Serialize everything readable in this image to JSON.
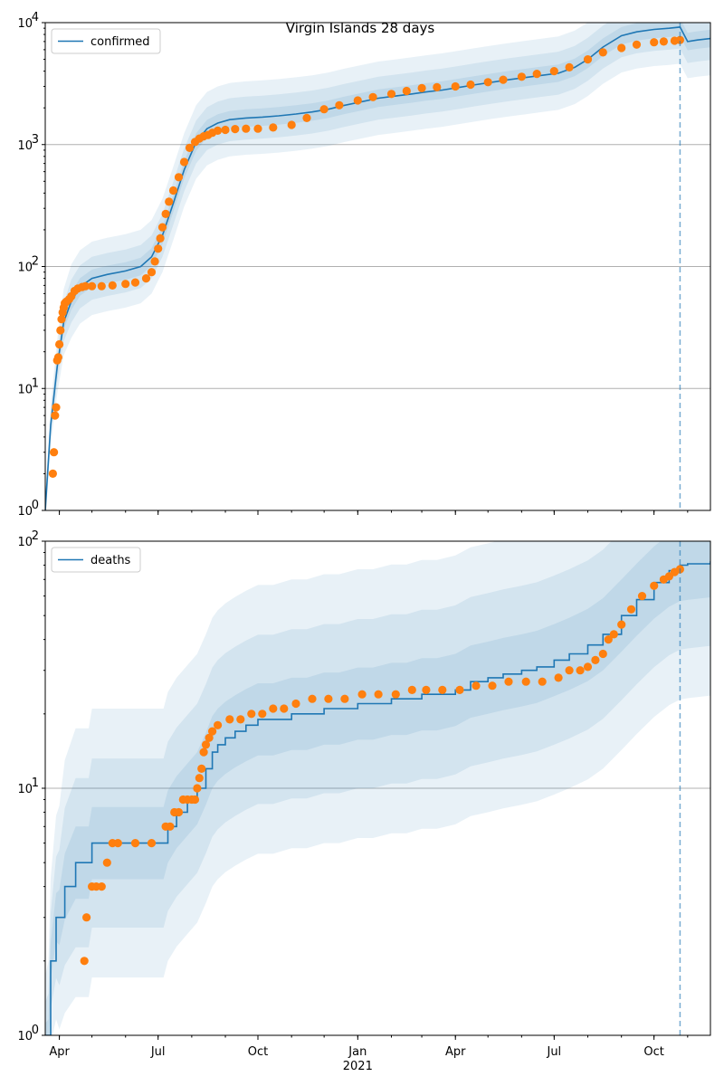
{
  "title": "Virgin Islands 28 days",
  "colors": {
    "model": "#1f77b4",
    "observed": "#ff7f0e",
    "band": "#1f77b4",
    "grid": "#b0b0b0"
  },
  "x_ticks": [
    {
      "label": "Apr",
      "date": "2020-04-01"
    },
    {
      "label": "Jul",
      "date": "2020-07-01"
    },
    {
      "label": "Oct",
      "date": "2020-10-01"
    },
    {
      "label": "Jan",
      "date": "2021-01-01"
    },
    {
      "label": "Apr",
      "date": "2021-04-01"
    },
    {
      "label": "Jul",
      "date": "2021-07-01"
    },
    {
      "label": "Oct",
      "date": "2021-10-01"
    }
  ],
  "x_year_label": "2021",
  "chart_data": [
    {
      "type": "line",
      "scale": "log",
      "legend": "confirmed",
      "legend_position": "top-left",
      "grid": "horizontal",
      "xlim": [
        "2020-03-19",
        "2021-11-22"
      ],
      "ylim": [
        1,
        10000
      ],
      "y_ticks": [
        {
          "value": 1,
          "base": "10",
          "exp": "0"
        },
        {
          "value": 10,
          "base": "10",
          "exp": "1"
        },
        {
          "value": 100,
          "base": "10",
          "exp": "2"
        },
        {
          "value": 1000,
          "base": "10",
          "exp": "3"
        },
        {
          "value": 10000,
          "base": "10",
          "exp": "4"
        }
      ],
      "forecast_start": "2021-10-25",
      "model": {
        "x": [
          "2020-03-19",
          "2020-03-24",
          "2020-03-30",
          "2020-04-05",
          "2020-04-12",
          "2020-04-20",
          "2020-05-01",
          "2020-05-15",
          "2020-06-01",
          "2020-06-15",
          "2020-06-25",
          "2020-07-05",
          "2020-07-15",
          "2020-07-25",
          "2020-08-05",
          "2020-08-15",
          "2020-08-25",
          "2020-09-05",
          "2020-09-20",
          "2020-10-05",
          "2020-10-20",
          "2020-11-05",
          "2020-11-20",
          "2020-12-05",
          "2020-12-20",
          "2021-01-05",
          "2021-01-20",
          "2021-02-05",
          "2021-02-20",
          "2021-03-05",
          "2021-03-20",
          "2021-04-05",
          "2021-04-20",
          "2021-05-05",
          "2021-05-20",
          "2021-06-05",
          "2021-06-20",
          "2021-07-05",
          "2021-07-20",
          "2021-08-01",
          "2021-08-15",
          "2021-09-01",
          "2021-09-15",
          "2021-10-01",
          "2021-10-15",
          "2021-10-25",
          "2021-11-01",
          "2021-11-10",
          "2021-11-22"
        ],
        "y": [
          1,
          5,
          15,
          35,
          52,
          68,
          80,
          86,
          92,
          100,
          120,
          180,
          330,
          620,
          1050,
          1350,
          1500,
          1600,
          1650,
          1680,
          1720,
          1780,
          1850,
          1950,
          2100,
          2250,
          2400,
          2500,
          2600,
          2700,
          2800,
          2950,
          3100,
          3250,
          3400,
          3550,
          3700,
          3850,
          4300,
          5000,
          6300,
          7800,
          8400,
          8800,
          9000,
          9200,
          7000,
          7200,
          7400
        ]
      },
      "band_spread": [
        2.0,
        1.5,
        1.18
      ],
      "observed": {
        "x": [
          "2020-03-26",
          "2020-03-27",
          "2020-03-28",
          "2020-03-29",
          "2020-03-30",
          "2020-03-31",
          "2020-04-01",
          "2020-04-02",
          "2020-04-03",
          "2020-04-04",
          "2020-04-05",
          "2020-04-06",
          "2020-04-07",
          "2020-04-08",
          "2020-04-10",
          "2020-04-12",
          "2020-04-15",
          "2020-04-18",
          "2020-04-22",
          "2020-04-25",
          "2020-05-01",
          "2020-05-10",
          "2020-05-20",
          "2020-06-01",
          "2020-06-10",
          "2020-06-20",
          "2020-06-25",
          "2020-06-28",
          "2020-07-01",
          "2020-07-03",
          "2020-07-05",
          "2020-07-08",
          "2020-07-11",
          "2020-07-15",
          "2020-07-20",
          "2020-07-25",
          "2020-07-30",
          "2020-08-04",
          "2020-08-08",
          "2020-08-12",
          "2020-08-16",
          "2020-08-20",
          "2020-08-25",
          "2020-09-01",
          "2020-09-10",
          "2020-09-20",
          "2020-10-01",
          "2020-10-15",
          "2020-11-01",
          "2020-11-15",
          "2020-12-01",
          "2020-12-15",
          "2021-01-01",
          "2021-01-15",
          "2021-02-01",
          "2021-02-15",
          "2021-03-01",
          "2021-03-15",
          "2021-04-01",
          "2021-04-15",
          "2021-05-01",
          "2021-05-15",
          "2021-06-01",
          "2021-06-15",
          "2021-07-01",
          "2021-07-15",
          "2021-08-01",
          "2021-08-15",
          "2021-09-01",
          "2021-09-15",
          "2021-10-01",
          "2021-10-10",
          "2021-10-20",
          "2021-10-25"
        ],
        "y": [
          2,
          3,
          6,
          7,
          17,
          18,
          23,
          30,
          37,
          42,
          46,
          50,
          51,
          52,
          54,
          57,
          63,
          66,
          68,
          69,
          69,
          69,
          70,
          72,
          74,
          80,
          90,
          110,
          140,
          170,
          210,
          270,
          340,
          420,
          540,
          720,
          940,
          1050,
          1120,
          1170,
          1200,
          1250,
          1300,
          1320,
          1340,
          1350,
          1350,
          1380,
          1450,
          1650,
          1950,
          2100,
          2300,
          2450,
          2600,
          2750,
          2900,
          2950,
          3000,
          3100,
          3250,
          3400,
          3600,
          3800,
          4000,
          4300,
          5000,
          5700,
          6200,
          6600,
          6900,
          7000,
          7100,
          7200
        ]
      }
    },
    {
      "type": "line",
      "scale": "log",
      "legend": "deaths",
      "legend_position": "top-left",
      "grid": "horizontal",
      "xlim": [
        "2020-03-19",
        "2021-11-22"
      ],
      "ylim": [
        1,
        100
      ],
      "y_ticks": [
        {
          "value": 1,
          "base": "10",
          "exp": "0"
        },
        {
          "value": 10,
          "base": "10",
          "exp": "1"
        },
        {
          "value": 100,
          "base": "10",
          "exp": "2"
        }
      ],
      "forecast_start": "2021-10-25",
      "model": {
        "x": [
          "2020-03-19",
          "2020-03-22",
          "2020-03-24",
          "2020-03-29",
          "2020-04-01",
          "2020-04-06",
          "2020-04-16",
          "2020-04-28",
          "2020-05-01",
          "2020-07-06",
          "2020-07-10",
          "2020-07-18",
          "2020-07-28",
          "2020-08-06",
          "2020-08-14",
          "2020-08-20",
          "2020-08-25",
          "2020-09-01",
          "2020-09-10",
          "2020-09-20",
          "2020-10-01",
          "2020-10-15",
          "2020-11-01",
          "2020-11-15",
          "2020-12-01",
          "2020-12-15",
          "2021-01-01",
          "2021-01-15",
          "2021-02-01",
          "2021-02-15",
          "2021-03-01",
          "2021-03-15",
          "2021-04-01",
          "2021-04-15",
          "2021-05-01",
          "2021-05-15",
          "2021-06-01",
          "2021-06-15",
          "2021-07-01",
          "2021-07-15",
          "2021-08-01",
          "2021-08-15",
          "2021-09-01",
          "2021-09-15",
          "2021-10-01",
          "2021-10-15",
          "2021-10-25",
          "2021-11-01",
          "2021-11-22"
        ],
        "y": [
          1,
          1,
          2,
          3,
          3,
          4,
          5,
          5,
          6,
          6,
          7,
          8,
          9,
          10,
          12,
          14,
          15,
          16,
          17,
          18,
          19,
          19,
          20,
          20,
          21,
          21,
          22,
          22,
          23,
          23,
          24,
          24,
          25,
          27,
          28,
          29,
          30,
          31,
          33,
          35,
          38,
          42,
          50,
          58,
          68,
          76,
          80,
          81,
          83
        ]
      },
      "band_spread": [
        3.5,
        2.2,
        1.4
      ],
      "observed": {
        "x": [
          "2020-04-24",
          "2020-04-26",
          "2020-05-01",
          "2020-05-05",
          "2020-05-10",
          "2020-05-15",
          "2020-05-20",
          "2020-05-25",
          "2020-06-10",
          "2020-06-25",
          "2020-07-08",
          "2020-07-12",
          "2020-07-16",
          "2020-07-20",
          "2020-07-24",
          "2020-07-28",
          "2020-08-01",
          "2020-08-04",
          "2020-08-06",
          "2020-08-08",
          "2020-08-10",
          "2020-08-12",
          "2020-08-14",
          "2020-08-17",
          "2020-08-20",
          "2020-08-25",
          "2020-09-05",
          "2020-09-15",
          "2020-09-25",
          "2020-10-05",
          "2020-10-15",
          "2020-10-25",
          "2020-11-05",
          "2020-11-20",
          "2020-12-05",
          "2020-12-20",
          "2021-01-05",
          "2021-01-20",
          "2021-02-05",
          "2021-02-20",
          "2021-03-05",
          "2021-03-20",
          "2021-04-05",
          "2021-04-20",
          "2021-05-05",
          "2021-05-20",
          "2021-06-05",
          "2021-06-20",
          "2021-07-05",
          "2021-07-15",
          "2021-07-25",
          "2021-08-01",
          "2021-08-08",
          "2021-08-15",
          "2021-08-20",
          "2021-08-25",
          "2021-09-01",
          "2021-09-10",
          "2021-09-20",
          "2021-10-01",
          "2021-10-10",
          "2021-10-15",
          "2021-10-20",
          "2021-10-25"
        ],
        "y": [
          2,
          3,
          4,
          4,
          4,
          5,
          6,
          6,
          6,
          6,
          7,
          7,
          8,
          8,
          9,
          9,
          9,
          9,
          10,
          11,
          12,
          14,
          15,
          16,
          17,
          18,
          19,
          19,
          20,
          20,
          21,
          21,
          22,
          23,
          23,
          23,
          24,
          24,
          24,
          25,
          25,
          25,
          25,
          26,
          26,
          27,
          27,
          27,
          28,
          30,
          30,
          31,
          33,
          35,
          40,
          42,
          46,
          53,
          60,
          66,
          70,
          72,
          75,
          77
        ]
      }
    }
  ]
}
